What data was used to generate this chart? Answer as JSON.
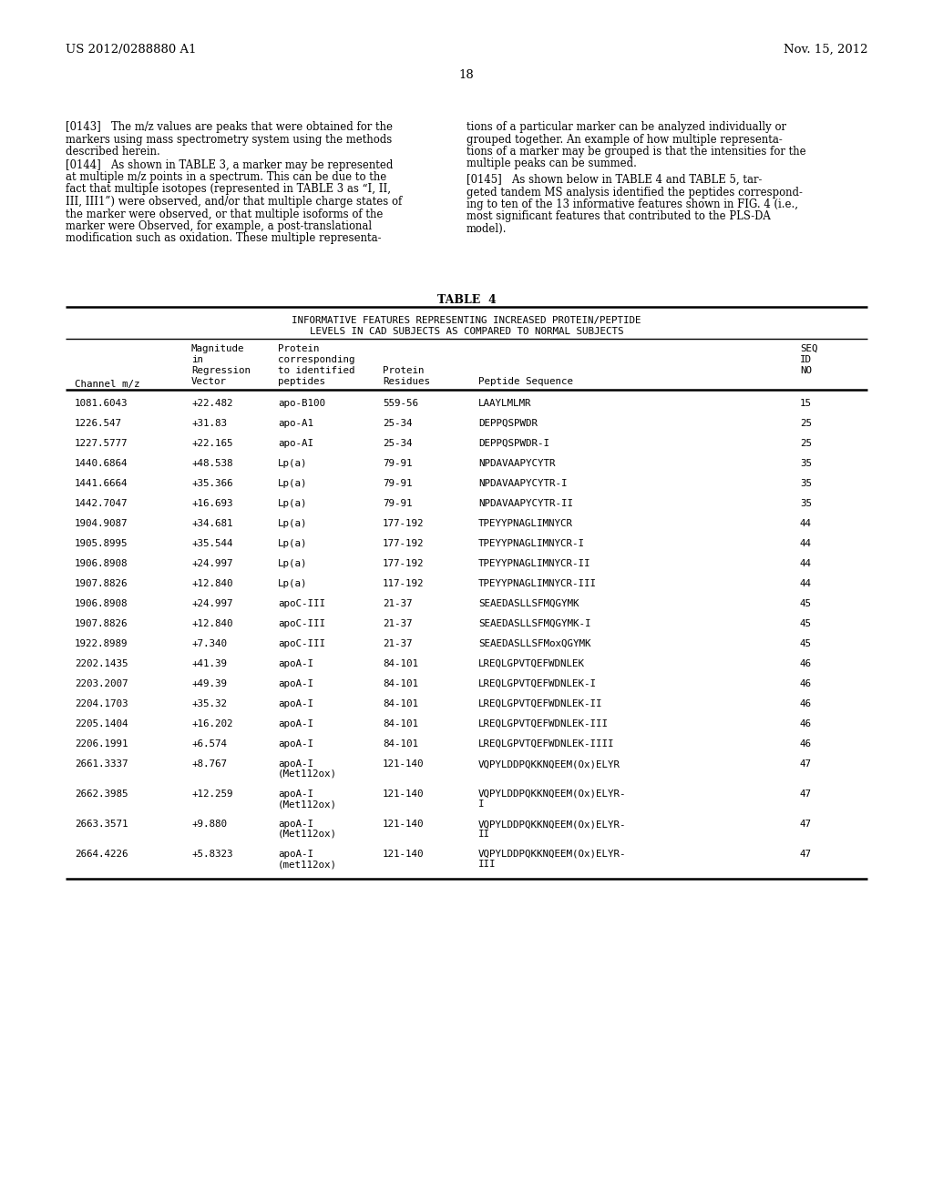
{
  "bg_color": "#ffffff",
  "header_left": "US 2012/0288880 A1",
  "header_right": "Nov. 15, 2012",
  "page_number": "18",
  "para143_left": [
    "[0143]   The m/z values are peaks that were obtained for the",
    "markers using mass spectrometry system using the methods",
    "described herein."
  ],
  "para144_left": [
    "[0144]   As shown in TABLE 3, a marker may be represented",
    "at multiple m/z points in a spectrum. This can be due to the",
    "fact that multiple isotopes (represented in TABLE 3 as “I, II,",
    "III, III1”) were observed, and/or that multiple charge states of",
    "the marker were observed, or that multiple isoforms of the",
    "marker were Observed, for example, a post-translational",
    "modification such as oxidation. These multiple representa-"
  ],
  "para143_right": [
    "tions of a particular marker can be analyzed individually or",
    "grouped together. An example of how multiple representa-",
    "tions of a marker may be grouped is that the intensities for the",
    "multiple peaks can be summed."
  ],
  "para145_right": [
    "[0145]   As shown below in TABLE 4 and TABLE 5, tar-",
    "geted tandem MS analysis identified the peptides correspond-",
    "ing to ten of the 13 informative features shown in FIG. 4 (i.e.,",
    "most significant features that contributed to the PLS-DA",
    "model)."
  ],
  "table_title": "TABLE  4",
  "table_subtitle1": "INFORMATIVE FEATURES REPRESENTING INCREASED PROTEIN/PEPTIDE",
  "table_subtitle2": "LEVELS IN CAD SUBJECTS AS COMPARED TO NORMAL SUBJECTS",
  "table_rows": [
    [
      "1081.6043",
      "+22.482",
      "apo-B100",
      "559-56",
      "LAAYLMLMR",
      "15",
      1
    ],
    [
      "1226.547",
      "+31.83",
      "apo-A1",
      "25-34",
      "DEPPQSPWDR",
      "25",
      1
    ],
    [
      "1227.5777",
      "+22.165",
      "apo-AI",
      "25-34",
      "DEPPQSPWDR-I",
      "25",
      1
    ],
    [
      "1440.6864",
      "+48.538",
      "Lp(a)",
      "79-91",
      "NPDAVAAPYCYTR",
      "35",
      1
    ],
    [
      "1441.6664",
      "+35.366",
      "Lp(a)",
      "79-91",
      "NPDAVAAPYCYTR-I",
      "35",
      1
    ],
    [
      "1442.7047",
      "+16.693",
      "Lp(a)",
      "79-91",
      "NPDAVAAPYCYTR-II",
      "35",
      1
    ],
    [
      "1904.9087",
      "+34.681",
      "Lp(a)",
      "177-192",
      "TPEYYPNAGLIMNYCR",
      "44",
      1
    ],
    [
      "1905.8995",
      "+35.544",
      "Lp(a)",
      "177-192",
      "TPEYYPNAGLIMNYCR-I",
      "44",
      1
    ],
    [
      "1906.8908",
      "+24.997",
      "Lp(a)",
      "177-192",
      "TPEYYPNAGLIMNYCR-II",
      "44",
      1
    ],
    [
      "1907.8826",
      "+12.840",
      "Lp(a)",
      "117-192",
      "TPEYYPNAGLIMNYCR-III",
      "44",
      1
    ],
    [
      "1906.8908",
      "+24.997",
      "apoC-III",
      "21-37",
      "SEAEDASLLSFMQGYMK",
      "45",
      1
    ],
    [
      "1907.8826",
      "+12.840",
      "apoC-III",
      "21-37",
      "SEAEDASLLSFMQGYMK-I",
      "45",
      1
    ],
    [
      "1922.8989",
      "+7.340",
      "apoC-III",
      "21-37",
      "SEAEDASLLSFMoxQGYMK",
      "45",
      1
    ],
    [
      "2202.1435",
      "+41.39",
      "apoA-I",
      "84-101",
      "LREQLGPVTQEFWDNLEK",
      "46",
      1
    ],
    [
      "2203.2007",
      "+49.39",
      "apoA-I",
      "84-101",
      "LREQLGPVTQEFWDNLEK-I",
      "46",
      1
    ],
    [
      "2204.1703",
      "+35.32",
      "apoA-I",
      "84-101",
      "LREQLGPVTQEFWDNLEK-II",
      "46",
      1
    ],
    [
      "2205.1404",
      "+16.202",
      "apoA-I",
      "84-101",
      "LREQLGPVTQEFWDNLEK-III",
      "46",
      1
    ],
    [
      "2206.1991",
      "+6.574",
      "apoA-I",
      "84-101",
      "LREQLGPVTQEFWDNLEK-IIII",
      "46",
      1
    ],
    [
      "2661.3337",
      "+8.767",
      "apoA-I\n(Met112ox)",
      "121-140",
      "VQPYLDDPQKKNQEEM(Ox)ELYR",
      "47",
      2
    ],
    [
      "2662.3985",
      "+12.259",
      "apoA-I\n(Met112ox)",
      "121-140",
      "VQPYLDDPQKKNQEEM(Ox)ELYR-\nI",
      "47",
      2
    ],
    [
      "2663.3571",
      "+9.880",
      "apoA-I\n(Met112ox)",
      "121-140",
      "VQPYLDDPQKKNQEEM(Ox)ELYR-\nII",
      "47",
      2
    ],
    [
      "2664.4226",
      "+5.8323",
      "apoA-I\n(met112ox)",
      "121-140",
      "VQPYLDDPQKKNQEEM(Ox)ELYR-\nIII",
      "47",
      2
    ]
  ]
}
